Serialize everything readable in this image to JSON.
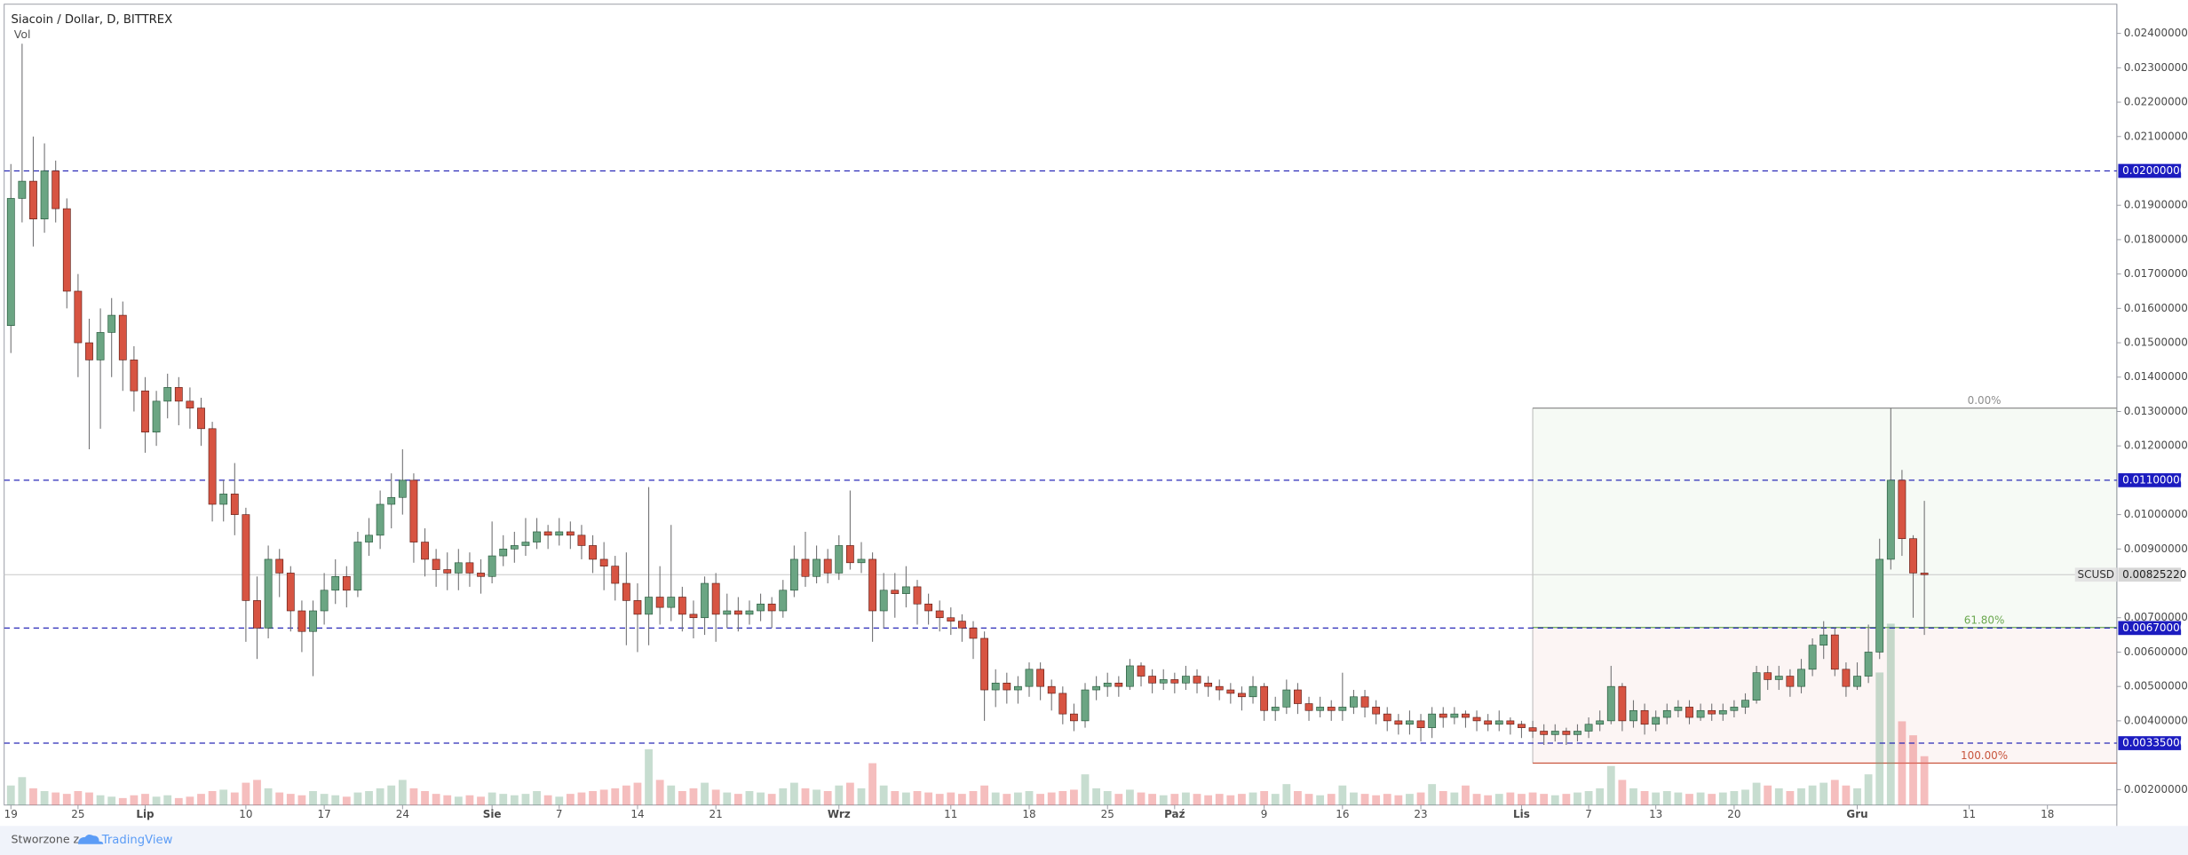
{
  "chart_data": {
    "type": "candlestick",
    "title": "Siacoin / Dollar, D, BITTREX",
    "xlim": [
      -0.6,
      188.2
    ],
    "ylim": [
      0.00155,
      0.02485
    ],
    "xticks": [
      {
        "value": 0,
        "label": "19"
      },
      {
        "value": 6,
        "label": "25"
      },
      {
        "value": 12,
        "label": "Lip"
      },
      {
        "value": 21,
        "label": "10"
      },
      {
        "value": 28,
        "label": "17"
      },
      {
        "value": 35,
        "label": "24"
      },
      {
        "value": 43,
        "label": "Sie"
      },
      {
        "value": 49,
        "label": "7"
      },
      {
        "value": 56,
        "label": "14"
      },
      {
        "value": 63,
        "label": "21"
      },
      {
        "value": 74,
        "label": "Wrz"
      },
      {
        "value": 84,
        "label": "11"
      },
      {
        "value": 91,
        "label": "18"
      },
      {
        "value": 98,
        "label": "25"
      },
      {
        "value": 104,
        "label": "Paź"
      },
      {
        "value": 112,
        "label": "9"
      },
      {
        "value": 119,
        "label": "16"
      },
      {
        "value": 126,
        "label": "23"
      },
      {
        "value": 135,
        "label": "Lis"
      },
      {
        "value": 141,
        "label": "7"
      },
      {
        "value": 147,
        "label": "13"
      },
      {
        "value": 154,
        "label": "20"
      },
      {
        "value": 165,
        "label": "Gru"
      },
      {
        "value": 175,
        "label": "11"
      },
      {
        "value": 182,
        "label": "18"
      }
    ],
    "yticks": [
      {
        "value": 0.024,
        "label": "0.02400000"
      },
      {
        "value": 0.023,
        "label": "0.02300000"
      },
      {
        "value": 0.022,
        "label": "0.02200000"
      },
      {
        "value": 0.021,
        "label": "0.02100000"
      },
      {
        "value": 0.019,
        "label": "0.01900000"
      },
      {
        "value": 0.018,
        "label": "0.01800000"
      },
      {
        "value": 0.017,
        "label": "0.01700000"
      },
      {
        "value": 0.016,
        "label": "0.01600000"
      },
      {
        "value": 0.015,
        "label": "0.01500000"
      },
      {
        "value": 0.014,
        "label": "0.01400000"
      },
      {
        "value": 0.013,
        "label": "0.01300000"
      },
      {
        "value": 0.012,
        "label": "0.01200000"
      },
      {
        "value": 0.01,
        "label": "0.01000000"
      },
      {
        "value": 0.009,
        "label": "0.00900000"
      },
      {
        "value": 0.007,
        "label": "0.00700000"
      },
      {
        "value": 0.006,
        "label": "0.00600000"
      },
      {
        "value": 0.005,
        "label": "0.00500000"
      },
      {
        "value": 0.004,
        "label": "0.00400000"
      },
      {
        "value": 0.002,
        "label": "0.00200000"
      }
    ],
    "x": [
      0,
      1,
      2,
      3,
      4,
      5,
      6,
      7,
      8,
      9,
      10,
      11,
      12,
      13,
      14,
      15,
      16,
      17,
      18,
      19,
      20,
      21,
      22,
      23,
      24,
      25,
      26,
      27,
      28,
      29,
      30,
      31,
      32,
      33,
      34,
      35,
      36,
      37,
      38,
      39,
      40,
      41,
      42,
      43,
      44,
      45,
      46,
      47,
      48,
      49,
      50,
      51,
      52,
      53,
      54,
      55,
      56,
      57,
      58,
      59,
      60,
      61,
      62,
      63,
      64,
      65,
      66,
      67,
      68,
      69,
      70,
      71,
      72,
      73,
      74,
      75,
      76,
      77,
      78,
      79,
      80,
      81,
      82,
      83,
      84,
      85,
      86,
      87,
      88,
      89,
      90,
      91,
      92,
      93,
      94,
      95,
      96,
      97,
      98,
      99,
      100,
      101,
      102,
      103,
      104,
      105,
      106,
      107,
      108,
      109,
      110,
      111,
      112,
      113,
      114,
      115,
      116,
      117,
      118,
      119,
      120,
      121,
      122,
      123,
      124,
      125,
      126,
      127,
      128,
      129,
      130,
      131,
      132,
      133,
      134,
      135,
      136,
      137,
      138,
      139,
      140,
      141,
      142,
      143,
      144,
      145,
      146,
      147,
      148,
      149,
      150,
      151,
      152,
      153,
      154,
      155,
      156,
      157,
      158,
      159,
      160,
      161,
      162,
      163,
      164,
      165,
      166,
      167,
      168,
      169,
      170,
      171
    ],
    "open": [
      0.0155,
      0.0192,
      0.0197,
      0.0186,
      0.02,
      0.0189,
      0.0165,
      0.015,
      0.0145,
      0.0153,
      0.0158,
      0.0145,
      0.0136,
      0.0124,
      0.0133,
      0.0137,
      0.0133,
      0.0131,
      0.0125,
      0.0103,
      0.0106,
      0.01,
      0.0075,
      0.0067,
      0.0087,
      0.0083,
      0.0072,
      0.0066,
      0.0072,
      0.0078,
      0.0082,
      0.0078,
      0.0092,
      0.0094,
      0.0103,
      0.0105,
      0.011,
      0.0092,
      0.0087,
      0.0084,
      0.0083,
      0.0086,
      0.0083,
      0.0082,
      0.0088,
      0.009,
      0.0091,
      0.0092,
      0.0095,
      0.0094,
      0.0095,
      0.0094,
      0.0091,
      0.0087,
      0.0085,
      0.008,
      0.0075,
      0.0071,
      0.0076,
      0.0073,
      0.0076,
      0.0071,
      0.007,
      0.008,
      0.0071,
      0.0072,
      0.0071,
      0.0072,
      0.0074,
      0.0072,
      0.0078,
      0.0087,
      0.0082,
      0.0087,
      0.0083,
      0.0091,
      0.0086,
      0.0087,
      0.0072,
      0.0078,
      0.0077,
      0.0079,
      0.0074,
      0.0072,
      0.007,
      0.0069,
      0.0067,
      0.0064,
      0.0049,
      0.0051,
      0.0049,
      0.005,
      0.0055,
      0.005,
      0.0048,
      0.0042,
      0.004,
      0.0049,
      0.005,
      0.0051,
      0.005,
      0.0056,
      0.0053,
      0.0051,
      0.0052,
      0.0051,
      0.0053,
      0.0051,
      0.005,
      0.0049,
      0.0048,
      0.0047,
      0.005,
      0.0043,
      0.0044,
      0.0049,
      0.0045,
      0.0043,
      0.0044,
      0.0043,
      0.0044,
      0.0047,
      0.0044,
      0.0042,
      0.004,
      0.0039,
      0.004,
      0.0038,
      0.0042,
      0.0041,
      0.0042,
      0.0041,
      0.004,
      0.0039,
      0.004,
      0.0039,
      0.0038,
      0.0037,
      0.0036,
      0.0037,
      0.0036,
      0.0037,
      0.0039,
      0.004,
      0.005,
      0.004,
      0.0043,
      0.0039,
      0.0041,
      0.0043,
      0.0044,
      0.0041,
      0.0043,
      0.0042,
      0.0043,
      0.0044,
      0.0046,
      0.0054,
      0.0052,
      0.0053,
      0.005,
      0.0055,
      0.0062,
      0.0065,
      0.0055,
      0.005,
      0.0053,
      0.006,
      0.0087,
      0.011,
      0.0093,
      0.0083
    ],
    "high": [
      0.0202,
      0.0237,
      0.021,
      0.0208,
      0.0203,
      0.0192,
      0.017,
      0.0157,
      0.016,
      0.0163,
      0.0162,
      0.0149,
      0.014,
      0.0136,
      0.0141,
      0.014,
      0.0137,
      0.0134,
      0.0127,
      0.011,
      0.0115,
      0.0102,
      0.0082,
      0.0091,
      0.009,
      0.0085,
      0.0075,
      0.0075,
      0.0083,
      0.0087,
      0.0085,
      0.0095,
      0.0099,
      0.0107,
      0.0112,
      0.0119,
      0.0112,
      0.0096,
      0.009,
      0.0089,
      0.009,
      0.0089,
      0.0087,
      0.0098,
      0.0094,
      0.0095,
      0.0099,
      0.0099,
      0.0097,
      0.0099,
      0.0098,
      0.0097,
      0.0094,
      0.0092,
      0.0088,
      0.0089,
      0.008,
      0.0108,
      0.0085,
      0.0097,
      0.0079,
      0.0075,
      0.0082,
      0.0083,
      0.0077,
      0.0076,
      0.0075,
      0.0077,
      0.0076,
      0.0081,
      0.0091,
      0.0095,
      0.0091,
      0.009,
      0.0094,
      0.0107,
      0.0092,
      0.0089,
      0.0083,
      0.0083,
      0.0085,
      0.0081,
      0.0077,
      0.0075,
      0.0073,
      0.0071,
      0.0069,
      0.0066,
      0.0055,
      0.0054,
      0.0053,
      0.0057,
      0.0057,
      0.0052,
      0.005,
      0.0045,
      0.0051,
      0.0053,
      0.0054,
      0.0053,
      0.0058,
      0.0057,
      0.0055,
      0.0055,
      0.0054,
      0.0056,
      0.0055,
      0.0053,
      0.0052,
      0.0051,
      0.005,
      0.0053,
      0.0051,
      0.0047,
      0.0052,
      0.0051,
      0.0047,
      0.0047,
      0.0046,
      0.0054,
      0.0049,
      0.0049,
      0.0046,
      0.0044,
      0.0042,
      0.0043,
      0.0042,
      0.0044,
      0.0044,
      0.0044,
      0.0043,
      0.0043,
      0.0042,
      0.0043,
      0.0041,
      0.004,
      0.004,
      0.0039,
      0.0039,
      0.0038,
      0.0039,
      0.0041,
      0.0043,
      0.0056,
      0.0051,
      0.0046,
      0.0045,
      0.0043,
      0.0045,
      0.0046,
      0.0046,
      0.0045,
      0.0045,
      0.0045,
      0.0046,
      0.0048,
      0.0056,
      0.0056,
      0.0056,
      0.0055,
      0.0058,
      0.0064,
      0.0069,
      0.0067,
      0.0057,
      0.0057,
      0.0068,
      0.0093,
      0.0131,
      0.0113,
      0.0094,
      0.0104
    ],
    "low": [
      0.0147,
      0.0185,
      0.0178,
      0.0182,
      0.0185,
      0.016,
      0.014,
      0.0119,
      0.0125,
      0.014,
      0.0136,
      0.013,
      0.0118,
      0.012,
      0.0128,
      0.0126,
      0.0125,
      0.012,
      0.0098,
      0.0098,
      0.0094,
      0.0063,
      0.0058,
      0.0064,
      0.0076,
      0.0066,
      0.006,
      0.0053,
      0.0068,
      0.0074,
      0.0073,
      0.0076,
      0.0088,
      0.009,
      0.0096,
      0.01,
      0.0086,
      0.0082,
      0.0079,
      0.0078,
      0.0078,
      0.0079,
      0.0077,
      0.008,
      0.0085,
      0.0086,
      0.0088,
      0.009,
      0.009,
      0.0091,
      0.009,
      0.0087,
      0.0083,
      0.0078,
      0.0075,
      0.0062,
      0.006,
      0.0062,
      0.0068,
      0.0069,
      0.0066,
      0.0064,
      0.0065,
      0.0063,
      0.0067,
      0.0066,
      0.0068,
      0.0069,
      0.0067,
      0.007,
      0.0076,
      0.0079,
      0.008,
      0.008,
      0.0081,
      0.0084,
      0.0083,
      0.0063,
      0.0067,
      0.007,
      0.0073,
      0.0068,
      0.0068,
      0.0066,
      0.0065,
      0.0063,
      0.0058,
      0.004,
      0.0044,
      0.0045,
      0.0045,
      0.0047,
      0.0046,
      0.0043,
      0.0039,
      0.0037,
      0.0038,
      0.0046,
      0.0047,
      0.0047,
      0.0049,
      0.005,
      0.0048,
      0.0049,
      0.0048,
      0.0049,
      0.0048,
      0.0047,
      0.0046,
      0.0045,
      0.0043,
      0.0045,
      0.004,
      0.004,
      0.0042,
      0.0042,
      0.004,
      0.0041,
      0.004,
      0.004,
      0.0042,
      0.0041,
      0.0039,
      0.0037,
      0.0036,
      0.0036,
      0.0034,
      0.0035,
      0.0038,
      0.0039,
      0.0038,
      0.0037,
      0.0037,
      0.0037,
      0.0036,
      0.0035,
      0.0035,
      0.0033,
      0.0034,
      0.0033,
      0.0034,
      0.0035,
      0.0037,
      0.0039,
      0.0037,
      0.0038,
      0.0036,
      0.0037,
      0.0039,
      0.0041,
      0.0039,
      0.004,
      0.004,
      0.004,
      0.0041,
      0.0042,
      0.0045,
      0.0049,
      0.0049,
      0.0047,
      0.0048,
      0.0053,
      0.0058,
      0.0053,
      0.0047,
      0.0049,
      0.0051,
      0.0058,
      0.0084,
      0.0088,
      0.007,
      0.0065
    ],
    "close": [
      0.0192,
      0.0197,
      0.0186,
      0.02,
      0.0189,
      0.0165,
      0.015,
      0.0145,
      0.0153,
      0.0158,
      0.0145,
      0.0136,
      0.0124,
      0.0133,
      0.0137,
      0.0133,
      0.0131,
      0.0125,
      0.0103,
      0.0106,
      0.01,
      0.0075,
      0.0067,
      0.0087,
      0.0083,
      0.0072,
      0.0066,
      0.0072,
      0.0078,
      0.0082,
      0.0078,
      0.0092,
      0.0094,
      0.0103,
      0.0105,
      0.011,
      0.0092,
      0.0087,
      0.0084,
      0.0083,
      0.0086,
      0.0083,
      0.0082,
      0.0088,
      0.009,
      0.0091,
      0.0092,
      0.0095,
      0.0094,
      0.0095,
      0.0094,
      0.0091,
      0.0087,
      0.0085,
      0.008,
      0.0075,
      0.0071,
      0.0076,
      0.0073,
      0.0076,
      0.0071,
      0.007,
      0.008,
      0.0071,
      0.0072,
      0.0071,
      0.0072,
      0.0074,
      0.0072,
      0.0078,
      0.0087,
      0.0082,
      0.0087,
      0.0083,
      0.0091,
      0.0086,
      0.0087,
      0.0072,
      0.0078,
      0.0077,
      0.0079,
      0.0074,
      0.0072,
      0.007,
      0.0069,
      0.0067,
      0.0064,
      0.0049,
      0.0051,
      0.0049,
      0.005,
      0.0055,
      0.005,
      0.0048,
      0.0042,
      0.004,
      0.0049,
      0.005,
      0.0051,
      0.005,
      0.0056,
      0.0053,
      0.0051,
      0.0052,
      0.0051,
      0.0053,
      0.0051,
      0.005,
      0.0049,
      0.0048,
      0.0047,
      0.005,
      0.0043,
      0.0044,
      0.0049,
      0.0045,
      0.0043,
      0.0044,
      0.0043,
      0.0044,
      0.0047,
      0.0044,
      0.0042,
      0.004,
      0.0039,
      0.004,
      0.0038,
      0.0042,
      0.0041,
      0.0042,
      0.0041,
      0.004,
      0.0039,
      0.004,
      0.0039,
      0.0038,
      0.0037,
      0.0036,
      0.0037,
      0.0036,
      0.0037,
      0.0039,
      0.004,
      0.005,
      0.004,
      0.0043,
      0.0039,
      0.0041,
      0.0043,
      0.0044,
      0.0041,
      0.0043,
      0.0042,
      0.0043,
      0.0044,
      0.0046,
      0.0054,
      0.0052,
      0.0053,
      0.005,
      0.0055,
      0.0062,
      0.0065,
      0.0055,
      0.005,
      0.0053,
      0.006,
      0.0087,
      0.011,
      0.0093,
      0.0083,
      0.0082522
    ],
    "volume": {
      "name": "Vol",
      "values": [
        14,
        20,
        12,
        10,
        9,
        8,
        10,
        9,
        7,
        6,
        5,
        7,
        8,
        6,
        7,
        5,
        6,
        8,
        10,
        11,
        9,
        16,
        18,
        12,
        9,
        8,
        7,
        10,
        8,
        7,
        6,
        9,
        10,
        12,
        14,
        18,
        12,
        10,
        8,
        7,
        6,
        7,
        6,
        9,
        8,
        7,
        8,
        10,
        7,
        6,
        8,
        9,
        10,
        11,
        12,
        14,
        16,
        40,
        18,
        14,
        10,
        12,
        16,
        11,
        9,
        8,
        10,
        9,
        8,
        12,
        16,
        12,
        11,
        10,
        14,
        16,
        12,
        30,
        14,
        10,
        9,
        10,
        9,
        8,
        9,
        8,
        10,
        14,
        9,
        8,
        9,
        10,
        8,
        9,
        10,
        11,
        22,
        12,
        10,
        8,
        11,
        9,
        8,
        7,
        8,
        9,
        8,
        7,
        8,
        7,
        8,
        9,
        10,
        8,
        15,
        10,
        8,
        7,
        8,
        14,
        9,
        8,
        7,
        8,
        7,
        8,
        9,
        15,
        10,
        9,
        14,
        8,
        7,
        8,
        9,
        8,
        9,
        8,
        7,
        8,
        9,
        10,
        12,
        28,
        18,
        12,
        10,
        9,
        10,
        9,
        8,
        9,
        8,
        9,
        10,
        11,
        16,
        14,
        12,
        10,
        12,
        14,
        16,
        18,
        14,
        12,
        22,
        95,
        130,
        60,
        50,
        35
      ]
    },
    "hlines": [
      {
        "value": 0.02,
        "label": "0.02000000"
      },
      {
        "value": 0.011,
        "label": "0.01100000"
      },
      {
        "value": 0.0067,
        "label": "0.00670000"
      },
      {
        "value": 0.00335,
        "label": "0.00335000"
      }
    ],
    "last_price": {
      "name": "SCUSD",
      "value": 0.0082522,
      "label": "0.00825220"
    },
    "fib": {
      "x0": 136,
      "high": 0.0131,
      "low": 0.00277,
      "levels": [
        {
          "value": 0,
          "label": "0.00%",
          "color": "#8e8e8e"
        },
        {
          "value": 61.8,
          "label": "61.80%",
          "color": "#6aa84f"
        },
        {
          "value": 100,
          "label": "100.00%",
          "color": "#c8553d"
        }
      ]
    }
  },
  "footer": {
    "prefix": "Stworzone z",
    "brand": "TradingView"
  }
}
